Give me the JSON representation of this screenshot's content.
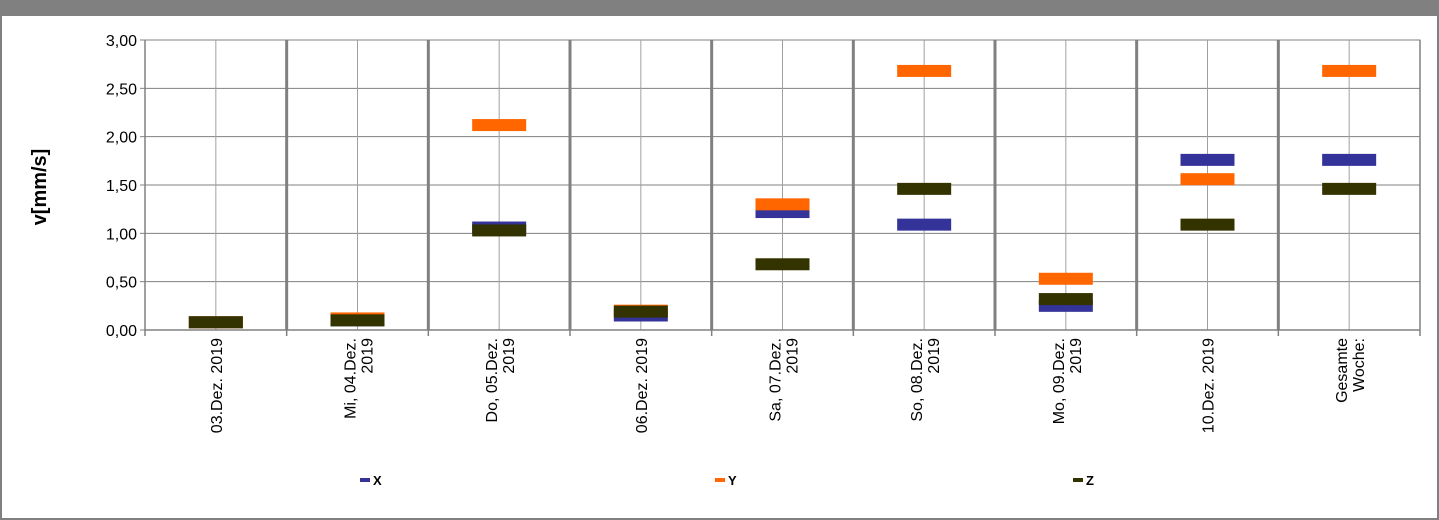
{
  "chart_data": {
    "type": "scatter",
    "marker": "horizontal-bar",
    "categories": [
      "03.Dez. 2019",
      "Mi, 04.Dez.\n2019",
      "Do, 05.Dez.\n2019",
      "06.Dez. 2019",
      "Sa, 07.Dez.\n2019",
      "So, 08.Dez.\n2019",
      "Mo, 09.Dez.\n2019",
      "10.Dez. 2019",
      "Gesamte\nWoche:"
    ],
    "series": [
      {
        "name": "X",
        "color": "#333399",
        "values": [
          0.08,
          0.1,
          1.06,
          0.15,
          1.22,
          1.09,
          0.25,
          1.76,
          1.76
        ]
      },
      {
        "name": "Y",
        "color": "#ff6600",
        "values": [
          0.08,
          0.12,
          2.12,
          0.2,
          1.3,
          2.68,
          0.53,
          1.56,
          2.68
        ]
      },
      {
        "name": "Z",
        "color": "#333300",
        "values": [
          0.08,
          0.1,
          1.03,
          0.19,
          0.68,
          1.46,
          0.32,
          1.09,
          1.46
        ]
      }
    ],
    "y_ticks": [
      "0,00",
      "0,50",
      "1,00",
      "1,50",
      "2,00",
      "2,50",
      "3,00"
    ],
    "ylim": [
      0,
      3
    ],
    "ylabel": "v[mm/s]",
    "xlabel": "",
    "title": "",
    "grid": true,
    "legend_position": "bottom"
  }
}
